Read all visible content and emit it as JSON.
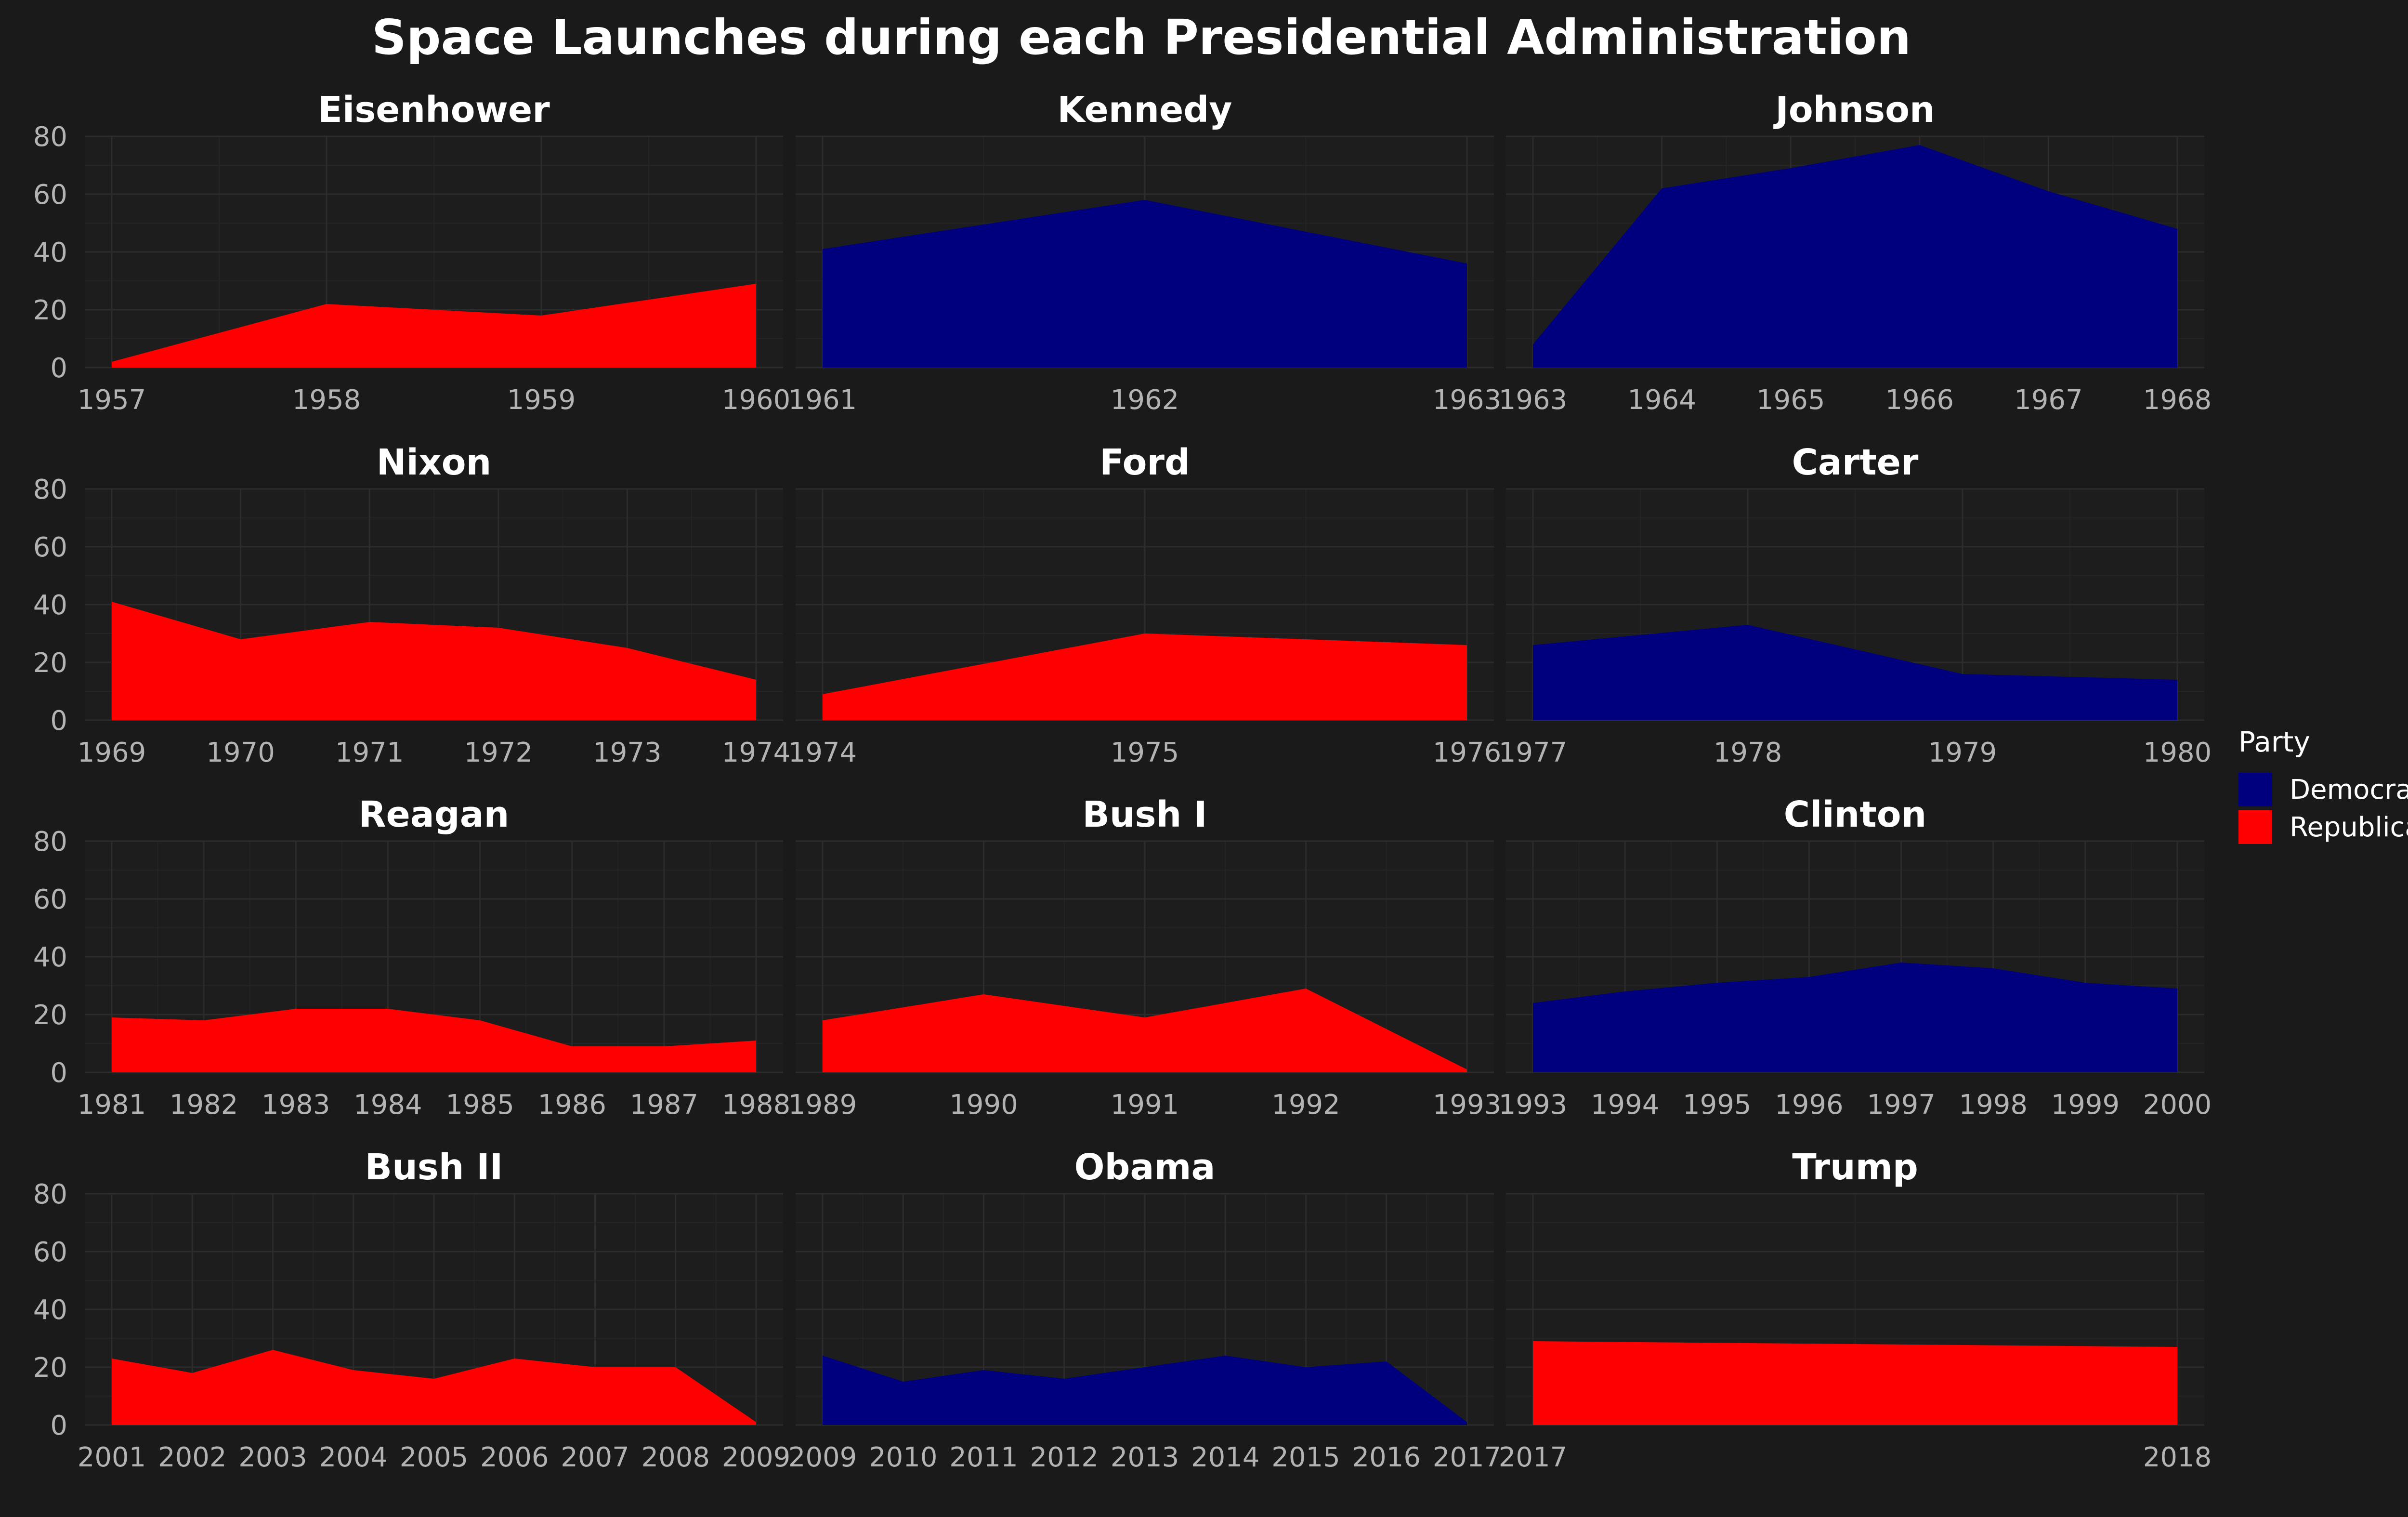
{
  "chart_data": {
    "type": "area",
    "title": "Space Launches during each Presidential Administration",
    "xlabel": "",
    "ylabel": "",
    "ylim": [
      0,
      80
    ],
    "yticks": [
      0,
      20,
      40,
      60,
      80
    ],
    "grid": true,
    "legend": {
      "title": "Party",
      "placement": "right",
      "entries": [
        {
          "name": "Democrat",
          "color": "#00007f"
        },
        {
          "name": "Republican",
          "color": "#ff0000"
        }
      ]
    },
    "colors": {
      "Democrat": "#00007f",
      "Republican": "#ff0000",
      "background": "#1a1a1a",
      "text": "#ffffff",
      "tick_text": "#b3b3b3"
    },
    "panels": [
      {
        "name": "Eisenhower",
        "party": "Republican",
        "x": [
          1957,
          1958,
          1959,
          1960
        ],
        "values": [
          2,
          22,
          18,
          29
        ]
      },
      {
        "name": "Kennedy",
        "party": "Democrat",
        "x": [
          1961,
          1962,
          1963
        ],
        "values": [
          41,
          58,
          36
        ]
      },
      {
        "name": "Johnson",
        "party": "Democrat",
        "x": [
          1963,
          1964,
          1965,
          1966,
          1967,
          1968
        ],
        "values": [
          8,
          62,
          69,
          77,
          61,
          48
        ]
      },
      {
        "name": "Nixon",
        "party": "Republican",
        "x": [
          1969,
          1970,
          1971,
          1972,
          1973,
          1974
        ],
        "values": [
          41,
          28,
          34,
          32,
          25,
          14
        ]
      },
      {
        "name": "Ford",
        "party": "Republican",
        "x": [
          1974,
          1975,
          1976
        ],
        "values": [
          9,
          30,
          26
        ]
      },
      {
        "name": "Carter",
        "party": "Democrat",
        "x": [
          1977,
          1978,
          1979,
          1980
        ],
        "values": [
          26,
          33,
          16,
          14
        ]
      },
      {
        "name": "Reagan",
        "party": "Republican",
        "x": [
          1981,
          1982,
          1983,
          1984,
          1985,
          1986,
          1987,
          1988
        ],
        "values": [
          19,
          18,
          22,
          22,
          18,
          9,
          9,
          11
        ]
      },
      {
        "name": "Bush I",
        "party": "Republican",
        "x": [
          1989,
          1990,
          1991,
          1992,
          1993
        ],
        "values": [
          18,
          27,
          19,
          29,
          1
        ]
      },
      {
        "name": "Clinton",
        "party": "Democrat",
        "x": [
          1993,
          1994,
          1995,
          1996,
          1997,
          1998,
          1999,
          2000
        ],
        "values": [
          24,
          28,
          31,
          33,
          38,
          36,
          31,
          29
        ]
      },
      {
        "name": "Bush II",
        "party": "Republican",
        "x": [
          2001,
          2002,
          2003,
          2004,
          2005,
          2006,
          2007,
          2008,
          2009
        ],
        "values": [
          23,
          18,
          26,
          19,
          16,
          23,
          20,
          20,
          1
        ]
      },
      {
        "name": "Obama",
        "party": "Democrat",
        "x": [
          2009,
          2010,
          2011,
          2012,
          2013,
          2014,
          2015,
          2016,
          2017
        ],
        "values": [
          24,
          15,
          19,
          16,
          20,
          24,
          20,
          22,
          1
        ]
      },
      {
        "name": "Trump",
        "party": "Republican",
        "x": [
          2017,
          2018
        ],
        "values": [
          29,
          27
        ]
      }
    ]
  }
}
